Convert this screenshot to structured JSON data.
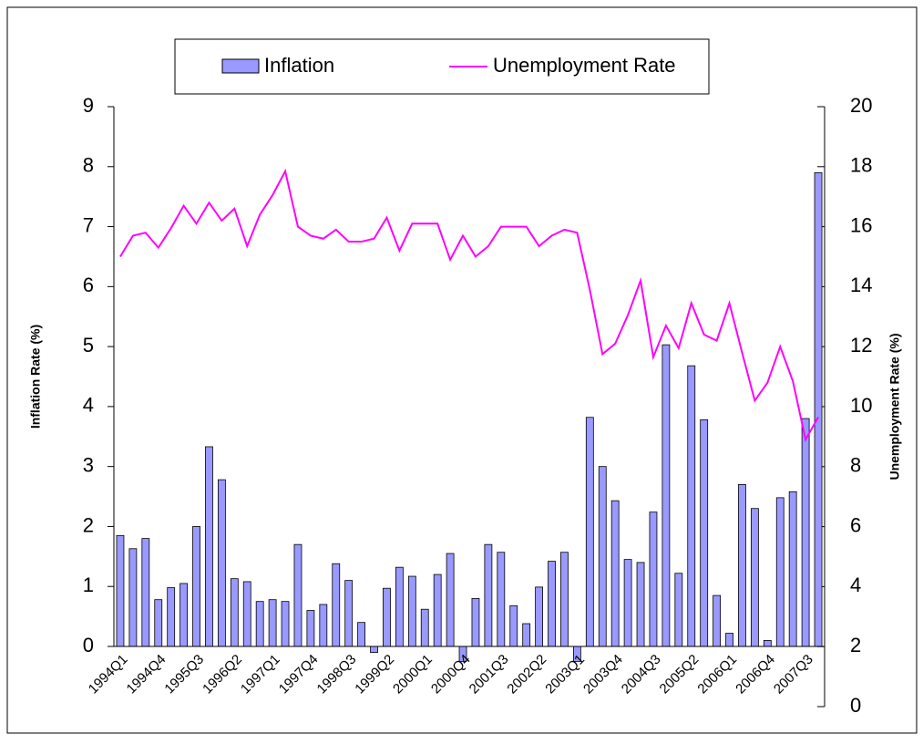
{
  "chart_data": {
    "type": "bar_line",
    "categories": [
      "1994Q1",
      null,
      null,
      "1994Q4",
      null,
      null,
      "1995Q3",
      null,
      null,
      "1996Q2",
      null,
      null,
      "1997Q1",
      null,
      null,
      "1997Q4",
      null,
      null,
      "1998Q3",
      null,
      null,
      "1999Q2",
      null,
      null,
      "2000Q1",
      null,
      null,
      "2000Q4",
      null,
      null,
      "2001Q3",
      null,
      null,
      "2002Q2",
      null,
      null,
      "2003Q1",
      null,
      null,
      "2003Q4",
      null,
      null,
      "2004Q3",
      null,
      null,
      "2005Q2",
      null,
      null,
      "2006Q1",
      null,
      null,
      "2006Q4",
      null,
      null,
      "2007Q3",
      null
    ],
    "series": [
      {
        "name": "Inflation",
        "color": "#9999ff",
        "kind": "bar",
        "values": [
          1.85,
          1.63,
          1.8,
          0.78,
          0.98,
          1.05,
          2.0,
          3.33,
          2.78,
          1.13,
          1.08,
          0.75,
          0.78,
          0.75,
          1.7,
          0.6,
          0.7,
          1.38,
          1.1,
          0.4,
          -0.1,
          0.97,
          1.32,
          1.17,
          0.62,
          1.2,
          1.55,
          -0.25,
          0.8,
          1.7,
          1.57,
          0.68,
          0.38,
          0.99,
          1.42,
          1.57,
          -0.25,
          3.82,
          3.0,
          2.43,
          1.45,
          1.4,
          2.24,
          5.03,
          1.22,
          4.68,
          3.78,
          0.85,
          0.22,
          2.7,
          2.3,
          0.1,
          2.48,
          2.58,
          3.8,
          7.9
        ]
      },
      {
        "name": "Unemployment Rate",
        "color": "#ff00ff",
        "kind": "line",
        "axis": "y2",
        "values": [
          15.0,
          15.7,
          15.8,
          15.3,
          15.95,
          16.7,
          16.1,
          16.8,
          16.2,
          16.6,
          15.35,
          16.4,
          17.05,
          17.85,
          16.0,
          15.7,
          15.6,
          15.9,
          15.5,
          15.5,
          15.6,
          16.3,
          15.2,
          16.1,
          16.1,
          16.1,
          14.9,
          15.7,
          15.0,
          15.35,
          16.0,
          16.0,
          16.0,
          15.35,
          15.7,
          15.9,
          15.8,
          13.9,
          11.75,
          12.1,
          13.05,
          14.2,
          11.65,
          12.7,
          11.95,
          13.45,
          12.4,
          12.2,
          13.45,
          11.8,
          10.2,
          10.8,
          12.0,
          10.85,
          8.9,
          9.65
        ]
      }
    ],
    "ylabel": "Inflation Rate (%)",
    "y2label": "Unemployment Rate (%)",
    "ylim": [
      0,
      9
    ],
    "yticks": [
      0,
      1,
      2,
      3,
      4,
      5,
      6,
      7,
      8,
      9
    ],
    "y2lim": [
      0,
      20
    ],
    "y2ticks": [
      0,
      2,
      4,
      6,
      8,
      10,
      12,
      14,
      16,
      18,
      20
    ]
  }
}
